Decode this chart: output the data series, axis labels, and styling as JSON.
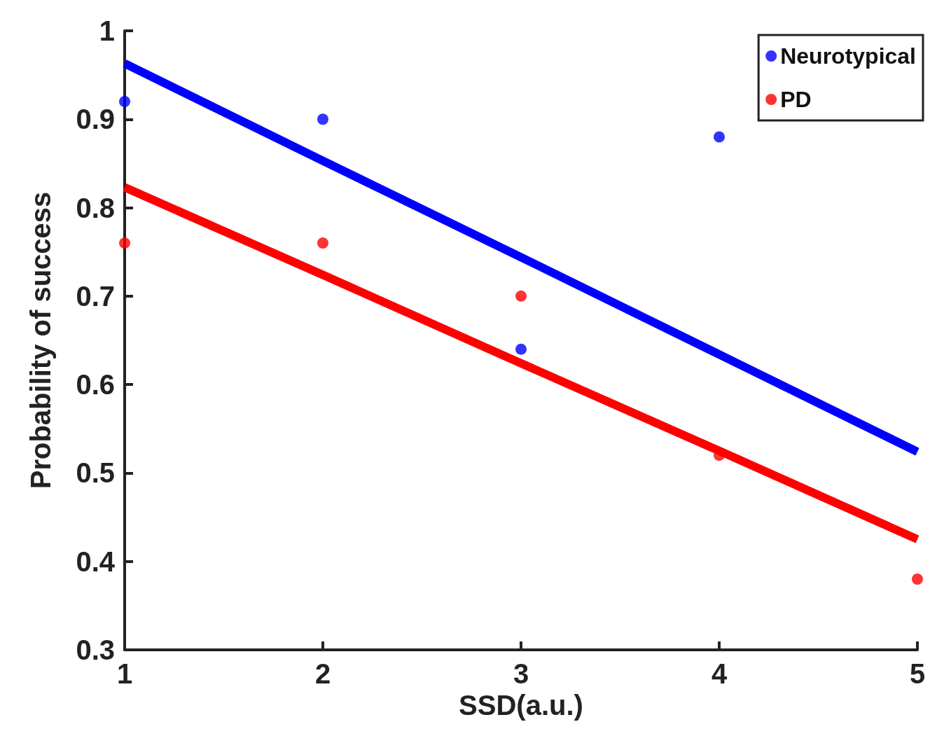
{
  "chart_data": {
    "type": "scatter",
    "xlabel": "SSD(a.u.)",
    "ylabel": "Probability of success",
    "x": [
      1,
      2,
      3,
      4,
      5
    ],
    "series": [
      {
        "name": "Neurotypical",
        "color": "#0000ff",
        "marker": "circle",
        "values": [
          0.92,
          0.9,
          0.64,
          0.88,
          null
        ]
      },
      {
        "name": "PD",
        "color": "#ff0000",
        "marker": "circle",
        "values": [
          0.76,
          0.76,
          0.7,
          0.52,
          0.38
        ]
      },
      {
        "type": "line",
        "color": "#0000ff",
        "marker": "none",
        "values": [
          0.963,
          0.853,
          0.744,
          0.634,
          0.524
        ]
      },
      {
        "type": "line",
        "color": "#ff0000",
        "marker": "none",
        "values": [
          0.823,
          0.724,
          0.624,
          0.525,
          0.425
        ]
      }
    ],
    "xlim": [
      1,
      5
    ],
    "xticks": [
      1,
      2,
      3,
      4,
      5
    ],
    "ylim": [
      0.3,
      1
    ],
    "yticks": [
      0.3,
      0.4,
      0.5,
      0.6,
      0.7,
      0.8,
      0.9,
      1
    ],
    "grid": false,
    "legend": "top right",
    "line_style": "solid"
  }
}
